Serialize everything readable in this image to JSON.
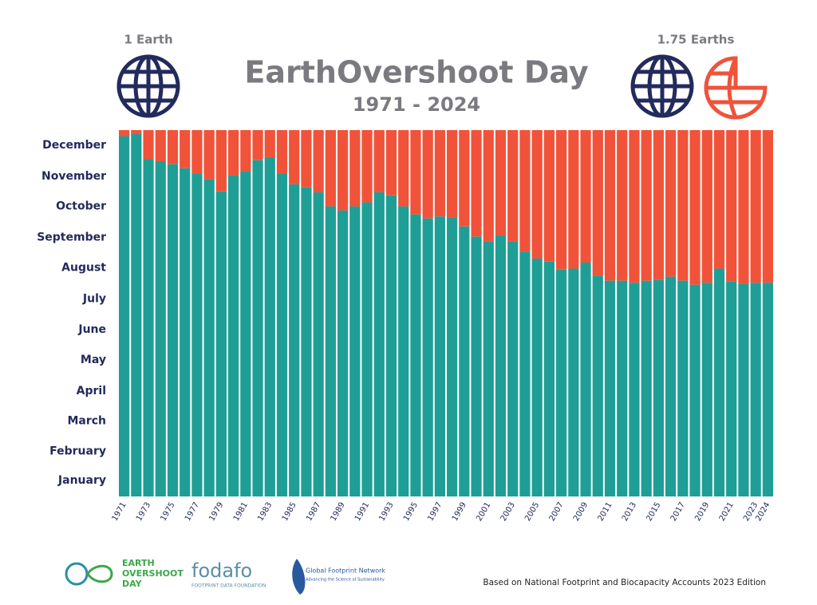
{
  "chart_data": {
    "type": "stacked-bar",
    "title": "EarthOvershoot Day",
    "subtitle": "1971 - 2024",
    "left_note": "1 Earth",
    "right_note": "1.75 Earths",
    "categories": [
      "1971",
      null,
      "1973",
      null,
      "1975",
      null,
      "1977",
      null,
      "1979",
      null,
      "1981",
      null,
      "1983",
      null,
      "1985",
      null,
      "1987",
      null,
      "1989",
      null,
      "1991",
      null,
      "1993",
      null,
      "1995",
      null,
      "1997",
      null,
      "1999",
      null,
      "2001",
      null,
      "2003",
      null,
      "2005",
      null,
      "2007",
      null,
      "2009",
      null,
      "2011",
      null,
      "2013",
      null,
      "2015",
      null,
      "2017",
      null,
      "2019",
      null,
      "2021",
      null,
      "2023",
      "2024"
    ],
    "series": [
      {
        "color": "#1f9e96",
        "values": [
          359,
          361,
          336,
          334,
          331,
          327,
          322,
          316,
          304,
          320,
          324,
          335,
          338,
          322,
          311,
          308,
          303,
          289,
          285,
          289,
          293,
          303,
          300,
          289,
          281,
          277,
          279,
          278,
          269,
          259,
          254,
          260,
          254,
          244,
          237,
          234,
          226,
          227,
          233,
          220,
          215,
          215,
          213,
          215,
          216,
          219,
          215,
          211,
          213,
          227,
          214,
          212,
          213,
          213
        ]
      },
      {
        "color": "#f0533a",
        "values": [
          6,
          4,
          29,
          31,
          34,
          38,
          43,
          49,
          61,
          45,
          41,
          30,
          27,
          43,
          54,
          57,
          62,
          76,
          80,
          76,
          72,
          62,
          65,
          76,
          84,
          88,
          86,
          87,
          96,
          106,
          111,
          105,
          111,
          121,
          128,
          131,
          139,
          138,
          132,
          145,
          150,
          150,
          152,
          150,
          149,
          146,
          150,
          154,
          152,
          138,
          151,
          153,
          152,
          152
        ]
      }
    ],
    "ylim": [
      0,
      365
    ],
    "yticks": [
      {
        "value": 16,
        "label": "January"
      },
      {
        "value": 45,
        "label": "February"
      },
      {
        "value": 75,
        "label": "March"
      },
      {
        "value": 105,
        "label": "April"
      },
      {
        "value": 136,
        "label": "May"
      },
      {
        "value": 166,
        "label": "June"
      },
      {
        "value": 197,
        "label": "July"
      },
      {
        "value": 228,
        "label": "August"
      },
      {
        "value": 258,
        "label": "September"
      },
      {
        "value": 289,
        "label": "October"
      },
      {
        "value": 319,
        "label": "November"
      },
      {
        "value": 350,
        "label": "December"
      }
    ],
    "grid": false
  },
  "footer": {
    "logo1": [
      "EARTH",
      "OVERSHOOT",
      "DAY"
    ],
    "logo2": "fodafo",
    "logo2_sub": "FOOTPRINT DATA FOUNDATION",
    "logo3": "Global Footprint Network",
    "logo3_sub": "Advancing the Science of Sustainability",
    "source": "Based on National Footprint and Biocapacity Accounts 2023 Edition"
  }
}
